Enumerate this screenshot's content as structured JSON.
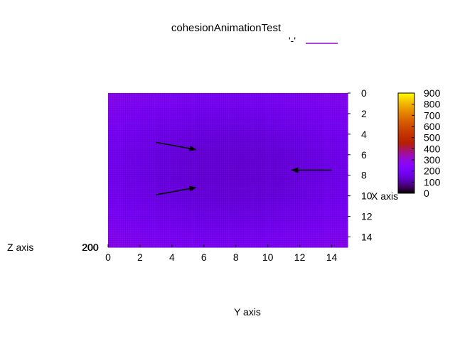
{
  "chart_data": {
    "type": "heatmap",
    "title": "cohesionAnimationTest",
    "xlabel": "Y axis",
    "ylabel": "X axis",
    "zlabel": "Z axis",
    "z_tick_overlap_text": "200",
    "legend_entries": [
      {
        "label": "'-'",
        "color": "#9400d3"
      }
    ],
    "x": {
      "ticks": [
        0,
        2,
        4,
        6,
        8,
        10,
        12,
        14
      ],
      "range": [
        0,
        15
      ]
    },
    "y": {
      "ticks": [
        0,
        2,
        4,
        6,
        8,
        10,
        12,
        14
      ],
      "range": [
        0,
        15
      ],
      "reversed": true
    },
    "colorbar": {
      "ticks": [
        0,
        100,
        200,
        300,
        400,
        500,
        600,
        700,
        800,
        900
      ],
      "range": [
        0,
        900
      ],
      "palette": "gnuplot"
    },
    "field": {
      "center_x": 7.75,
      "center_y": 7.5,
      "z_center": 150,
      "z_corner": 280
    },
    "arrows": [
      {
        "from": [
          3,
          4.8
        ],
        "to": [
          5.5,
          5.5
        ]
      },
      {
        "from": [
          3,
          9.9
        ],
        "to": [
          5.5,
          9.2
        ]
      },
      {
        "from": [
          14,
          7.5
        ],
        "to": [
          11.5,
          7.5
        ]
      }
    ],
    "grid": false
  }
}
